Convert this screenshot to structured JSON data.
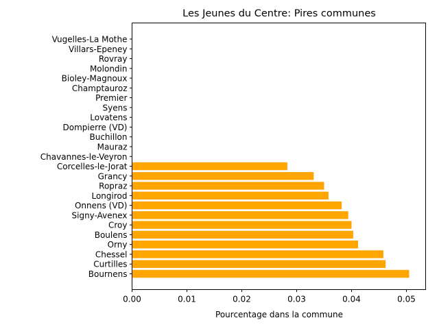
{
  "chart_data": {
    "type": "bar",
    "orientation": "horizontal",
    "title": "Les Jeunes du Centre: Pires communes",
    "xlabel": "Pourcentage dans la commune",
    "ylabel": "",
    "xlim": [
      0,
      0.0535
    ],
    "xticks": [
      "0.00",
      "0.01",
      "0.02",
      "0.03",
      "0.04",
      "0.05"
    ],
    "xtick_values": [
      0,
      0.01,
      0.02,
      0.03,
      0.04,
      0.05
    ],
    "bar_color": "#ffa500",
    "categories": [
      "Bournens",
      "Curtilles",
      "Chessel",
      "Orny",
      "Boulens",
      "Croy",
      "Signy-Avenex",
      "Onnens (VD)",
      "Longirod",
      "Ropraz",
      "Grancy",
      "Corcelles-le-Jorat",
      "Chavannes-le-Veyron",
      "Mauraz",
      "Buchillon",
      "Dompierre (VD)",
      "Lovatens",
      "Syens",
      "Premier",
      "Champtauroz",
      "Bioley-Magnoux",
      "Molondin",
      "Rovray",
      "Villars-Epeney",
      "Vugelles-La Mothe"
    ],
    "values": [
      0.0505,
      0.0462,
      0.0458,
      0.0412,
      0.0403,
      0.04,
      0.0394,
      0.0382,
      0.0358,
      0.035,
      0.0331,
      0.0283,
      0,
      0,
      0,
      0,
      0,
      0,
      0,
      0,
      0,
      0,
      0,
      0,
      0
    ],
    "grid": false,
    "legend": "none"
  }
}
